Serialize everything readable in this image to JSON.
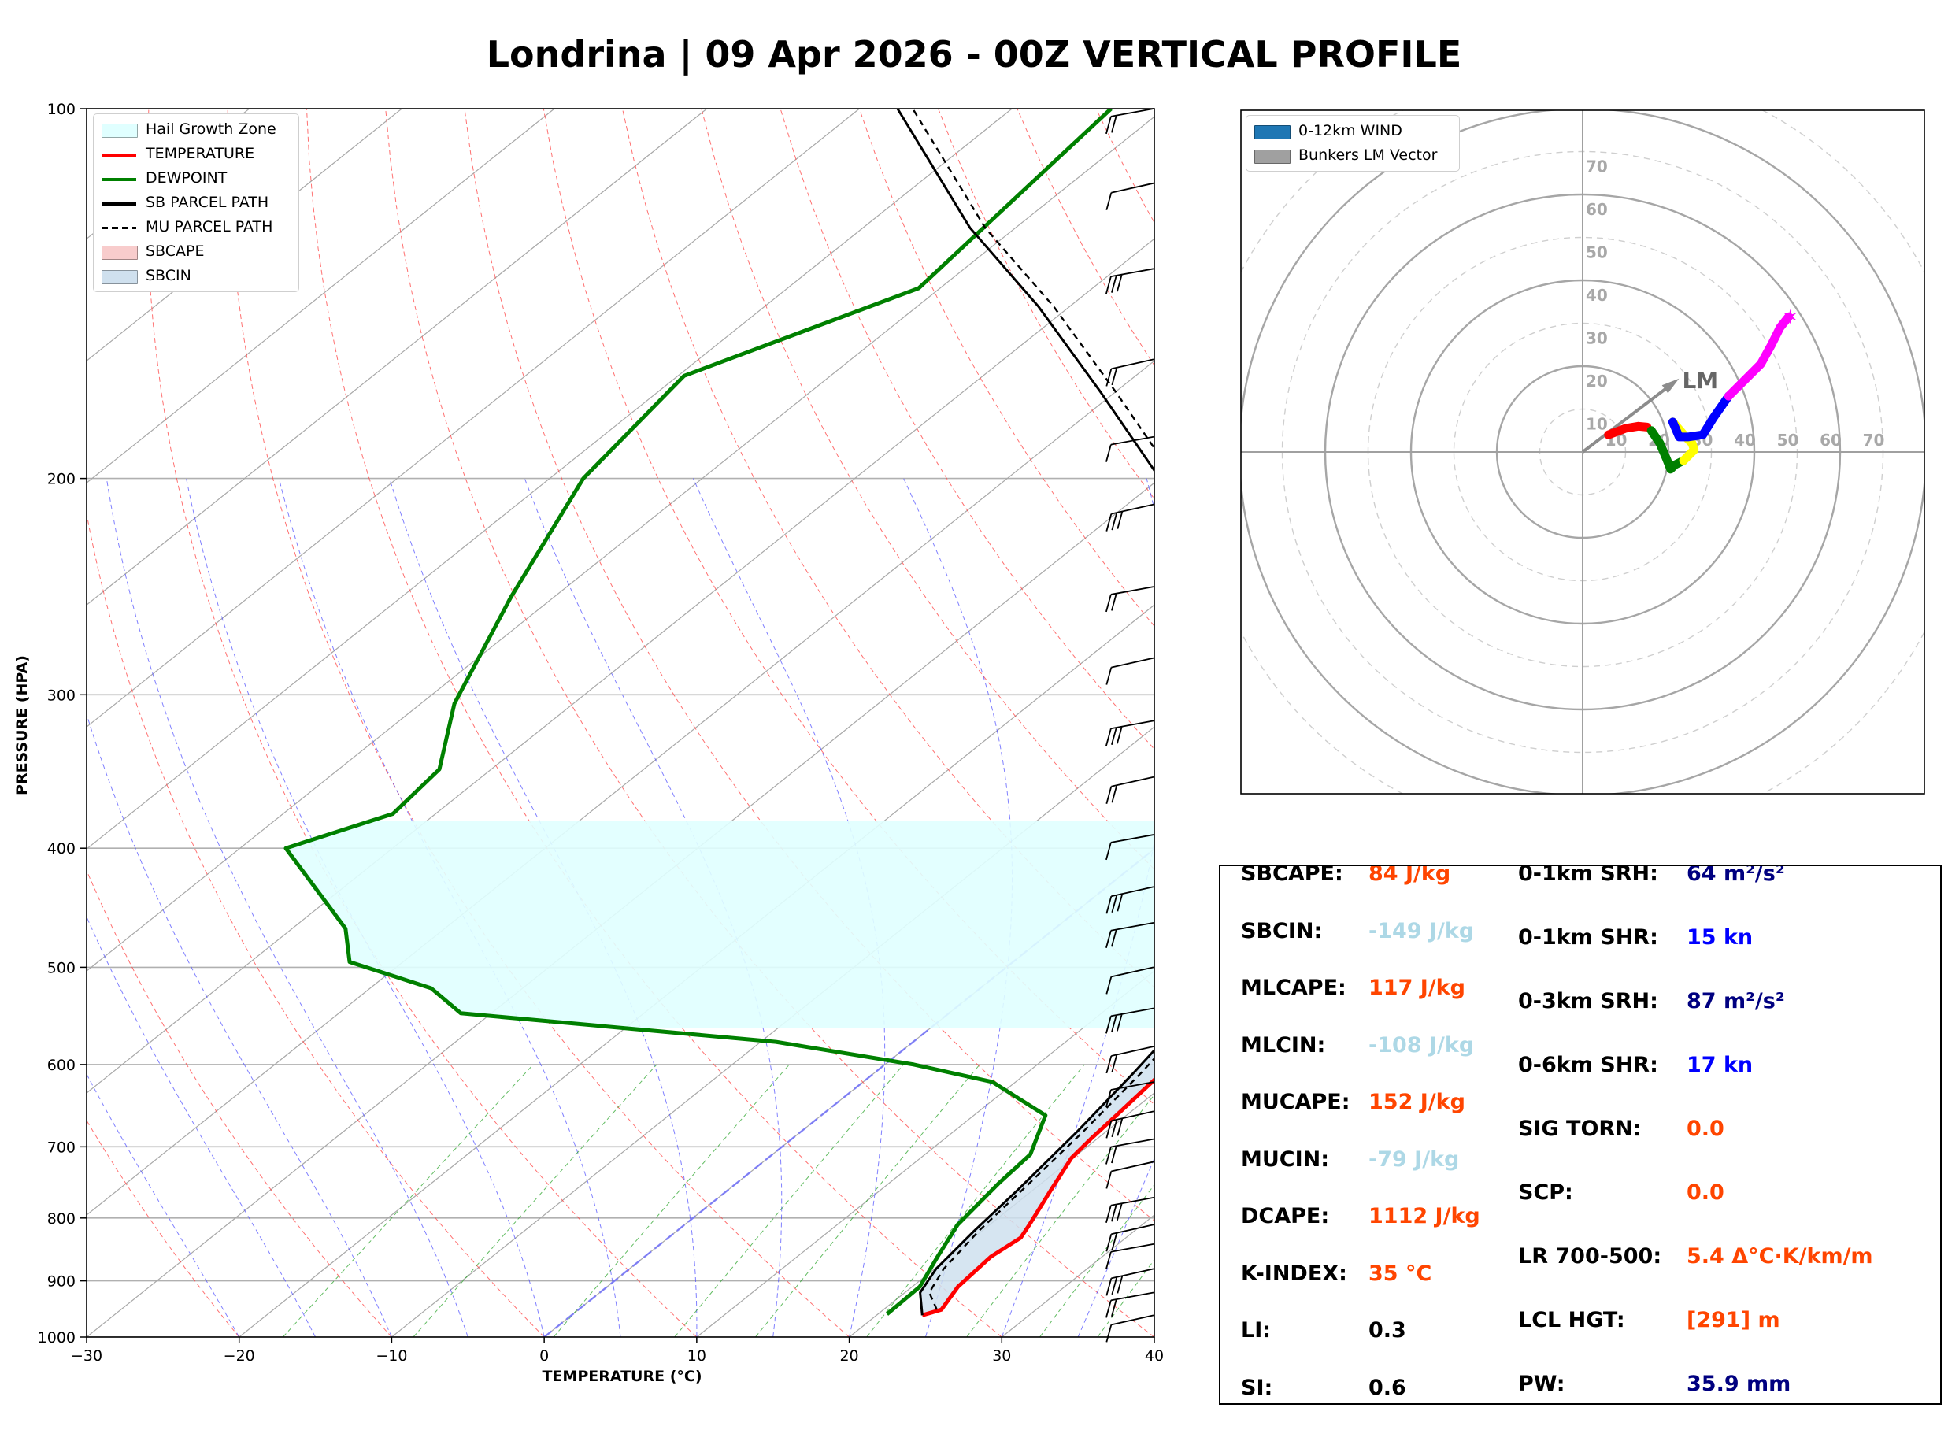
{
  "title": "Londrina | 09 Apr 2026 - 00Z VERTICAL PROFILE",
  "skewt": {
    "ylabel": "PRESSURE (HPA)",
    "xlabel": "TEMPERATURE (°C)",
    "pressure_ticks": [
      {
        "p": 100,
        "label": "100"
      },
      {
        "p": 200,
        "label": "200"
      },
      {
        "p": 300,
        "label": "300"
      },
      {
        "p": 400,
        "label": "400"
      },
      {
        "p": 500,
        "label": "500"
      },
      {
        "p": 600,
        "label": "600"
      },
      {
        "p": 700,
        "label": "700"
      },
      {
        "p": 800,
        "label": "800"
      },
      {
        "p": 900,
        "label": "900"
      },
      {
        "p": 1000,
        "label": "1000"
      }
    ],
    "temp_ticks": [
      {
        "t": -30,
        "label": "−30"
      },
      {
        "t": -20,
        "label": "−20"
      },
      {
        "t": -10,
        "label": "−10"
      },
      {
        "t": 0,
        "label": "0"
      },
      {
        "t": 10,
        "label": "10"
      },
      {
        "t": 20,
        "label": "20"
      },
      {
        "t": 30,
        "label": "30"
      },
      {
        "t": 40,
        "label": "40"
      }
    ],
    "legend": [
      {
        "label": "Hail Growth Zone",
        "kind": "patch",
        "color": "#e0ffff"
      },
      {
        "label": "TEMPERATURE",
        "kind": "line",
        "color": "#ff0000"
      },
      {
        "label": "DEWPOINT",
        "kind": "line",
        "color": "#008000"
      },
      {
        "label": "SB PARCEL PATH",
        "kind": "line",
        "color": "#000000"
      },
      {
        "label": "MU PARCEL PATH",
        "kind": "dash",
        "color": "#000000"
      },
      {
        "label": "SBCAPE",
        "kind": "patch",
        "color": "#f8cccc"
      },
      {
        "label": "SBCIN",
        "kind": "patch",
        "color": "#cfe0ee"
      }
    ]
  },
  "chart_data": [
    {
      "type": "line",
      "title": "Skew-T log-P diagram",
      "xlabel": "TEMPERATURE (°C)",
      "ylabel": "PRESSURE (HPA)",
      "xlim": [
        -30,
        40
      ],
      "ylim": [
        1000,
        100
      ],
      "series": [
        {
          "name": "TEMPERATURE",
          "color": "#ff0000",
          "points": [
            [
              23.0,
              960
            ],
            [
              23.8,
              950
            ],
            [
              23.0,
              910
            ],
            [
              22.7,
              860
            ],
            [
              23.1,
              830
            ],
            [
              22.6,
              810
            ],
            [
              21.2,
              760
            ],
            [
              19.9,
              715
            ],
            [
              19.6,
              690
            ],
            [
              19.3,
              655
            ],
            [
              18.9,
              615
            ],
            [
              18.5,
              580
            ],
            [
              18.3,
              555
            ],
            [
              17.0,
              520
            ],
            [
              15.9,
              500
            ],
            [
              13.5,
              455
            ],
            [
              9.5,
              400
            ],
            [
              2.8,
              345
            ],
            [
              -0.4,
              305
            ],
            [
              -4.9,
              250
            ],
            [
              -11.6,
              200
            ],
            [
              -15.7,
              170
            ],
            [
              -17.9,
              145
            ],
            [
              -19.1,
              120
            ],
            [
              -21.6,
              100
            ]
          ]
        },
        {
          "name": "DEWPOINT",
          "color": "#008000",
          "points": [
            [
              20.6,
              958
            ],
            [
              20.5,
              910
            ],
            [
              19.2,
              860
            ],
            [
              17.9,
              810
            ],
            [
              17.2,
              750
            ],
            [
              16.9,
              710
            ],
            [
              15.6,
              680
            ],
            [
              14.7,
              660
            ],
            [
              8.5,
              620
            ],
            [
              1.9,
              600
            ],
            [
              -9.0,
              575
            ],
            [
              -32.0,
              545
            ],
            [
              -36.0,
              520
            ],
            [
              -43.5,
              495
            ],
            [
              -46.5,
              465
            ],
            [
              -57.0,
              400
            ],
            [
              -52.8,
              375
            ],
            [
              -53.4,
              345
            ],
            [
              -57.8,
              305
            ],
            [
              -62.8,
              250
            ],
            [
              -67.8,
              200
            ],
            [
              -69.6,
              165
            ],
            [
              -61.4,
              140
            ],
            [
              -63.5,
              100
            ]
          ]
        },
        {
          "name": "SB PARCEL PATH",
          "color": "#000000",
          "points": [
            [
              23.0,
              960
            ],
            [
              21.0,
              920
            ],
            [
              20.1,
              880
            ],
            [
              19.5,
              820
            ],
            [
              19.0,
              760
            ],
            [
              18.1,
              680
            ],
            [
              17.0,
              610
            ],
            [
              15.8,
              550
            ],
            [
              15.1,
              500
            ],
            [
              13.0,
              440
            ],
            [
              9.0,
              380
            ],
            [
              1.5,
              335
            ],
            [
              -6.0,
              290
            ],
            [
              -17.5,
              240
            ],
            [
              -30.0,
              200
            ],
            [
              -41.0,
              170
            ],
            [
              -52.0,
              145
            ],
            [
              -63.0,
              125
            ],
            [
              -77.5,
              100
            ]
          ]
        },
        {
          "name": "MU PARCEL PATH",
          "color": "#000000",
          "dash": true,
          "points": [
            [
              23.5,
              950
            ],
            [
              21.6,
              920
            ],
            [
              20.6,
              880
            ],
            [
              19.8,
              820
            ],
            [
              19.3,
              760
            ],
            [
              18.5,
              680
            ],
            [
              17.5,
              610
            ],
            [
              16.3,
              550
            ],
            [
              15.6,
              500
            ],
            [
              13.7,
              440
            ],
            [
              9.8,
              380
            ],
            [
              2.3,
              335
            ],
            [
              -5.2,
              290
            ],
            [
              -16.5,
              240
            ],
            [
              -29.0,
              200
            ],
            [
              -40.0,
              170
            ],
            [
              -51.0,
              145
            ],
            [
              -62.0,
              125
            ],
            [
              -76.5,
              100
            ]
          ]
        }
      ],
      "hail_growth_zone": {
        "bottom_hpa": 560,
        "top_hpa": 380
      },
      "wind_barb_levels_hpa": [
        960,
        920,
        880,
        840,
        810,
        770,
        720,
        690,
        655,
        620,
        580,
        540,
        500,
        460,
        430,
        390,
        350,
        315,
        280,
        245,
        210,
        185,
        160,
        135,
        115,
        100
      ]
    },
    {
      "type": "scatter",
      "title": "Hodograph",
      "ring_labels": [
        "10",
        "20",
        "30",
        "40",
        "50",
        "60",
        "70"
      ],
      "legend": [
        "0-12km WIND",
        "Bunkers LM Vector"
      ],
      "bunkers_lm": {
        "u": 21,
        "v": 16,
        "label": "LM"
      },
      "segments": [
        {
          "color": "#ff0000",
          "points": [
            [
              6,
              4
            ],
            [
              10,
              5.5
            ],
            [
              13,
              6
            ],
            [
              15,
              5.8
            ]
          ]
        },
        {
          "color": "#008000",
          "points": [
            [
              16,
              5
            ],
            [
              18,
              2
            ],
            [
              19.5,
              -1.5
            ],
            [
              20.5,
              -4
            ],
            [
              21.5,
              -3
            ],
            [
              23.5,
              -2
            ]
          ]
        },
        {
          "color": "#ffff00",
          "points": [
            [
              23.5,
              -2
            ],
            [
              25,
              -0.5
            ],
            [
              26,
              0.5
            ],
            [
              25.5,
              2
            ],
            [
              24,
              3.5
            ],
            [
              21,
              7
            ]
          ]
        },
        {
          "color": "#0000ff",
          "points": [
            [
              21,
              7
            ],
            [
              22.5,
              3.5
            ],
            [
              24.5,
              3.5
            ],
            [
              28,
              4
            ],
            [
              30.5,
              8
            ],
            [
              34,
              13
            ]
          ]
        },
        {
          "color": "#ff00ff",
          "points": [
            [
              34,
              13
            ],
            [
              38,
              17
            ],
            [
              41.5,
              20.5
            ],
            [
              44,
              25
            ],
            [
              46,
              29
            ],
            [
              48,
              31.5
            ]
          ]
        }
      ]
    }
  ],
  "hodograph": {
    "ring_labels": [
      "10",
      "20",
      "30",
      "40",
      "50",
      "60",
      "70"
    ],
    "lm_label": "LM",
    "legend": [
      {
        "label": "0-12km WIND",
        "kind": "patch",
        "color": "#1f77b4"
      },
      {
        "label": "Bunkers LM Vector",
        "kind": "patch",
        "color": "#a0a0a0"
      }
    ]
  },
  "indices": {
    "left": [
      {
        "name": "SBCAPE:",
        "value": "84 J/kg",
        "color": "#ff4500"
      },
      {
        "name": "SBCIN:",
        "value": "-149 J/kg",
        "color": "#add8e6"
      },
      {
        "name": "MLCAPE:",
        "value": "117 J/kg",
        "color": "#ff4500"
      },
      {
        "name": "MLCIN:",
        "value": "-108 J/kg",
        "color": "#add8e6"
      },
      {
        "name": "MUCAPE:",
        "value": "152 J/kg",
        "color": "#ff4500"
      },
      {
        "name": "MUCIN:",
        "value": "-79 J/kg",
        "color": "#add8e6"
      },
      {
        "name": "DCAPE:",
        "value": "1112 J/kg",
        "color": "#ff4500"
      },
      {
        "name": "K-INDEX:",
        "value": "35 °C",
        "color": "#ff4500"
      },
      {
        "name": "LI:",
        "value": "0.3",
        "color": "#000000"
      },
      {
        "name": "SI:",
        "value": "0.6",
        "color": "#000000"
      }
    ],
    "right": [
      {
        "name": "0-1km SRH:",
        "value": "64 m²/s²",
        "color": "#000080"
      },
      {
        "name": "0-1km SHR:",
        "value": "15 kn",
        "color": "#0000ff"
      },
      {
        "name": "0-3km SRH:",
        "value": "87 m²/s²",
        "color": "#000080"
      },
      {
        "name": "0-6km SHR:",
        "value": "17 kn",
        "color": "#0000ff"
      },
      {
        "name": "SIG TORN:",
        "value": "0.0",
        "color": "#ff4500"
      },
      {
        "name": "SCP:",
        "value": "0.0",
        "color": "#ff4500"
      },
      {
        "name": "LR 700-500:",
        "value": "5.4 Δ°C·K/km/m",
        "color": "#ff4500"
      },
      {
        "name": "LCL HGT:",
        "value": "[291] m",
        "color": "#ff4500"
      },
      {
        "name": "PW:",
        "value": "35.9 mm",
        "color": "#000080"
      }
    ]
  }
}
